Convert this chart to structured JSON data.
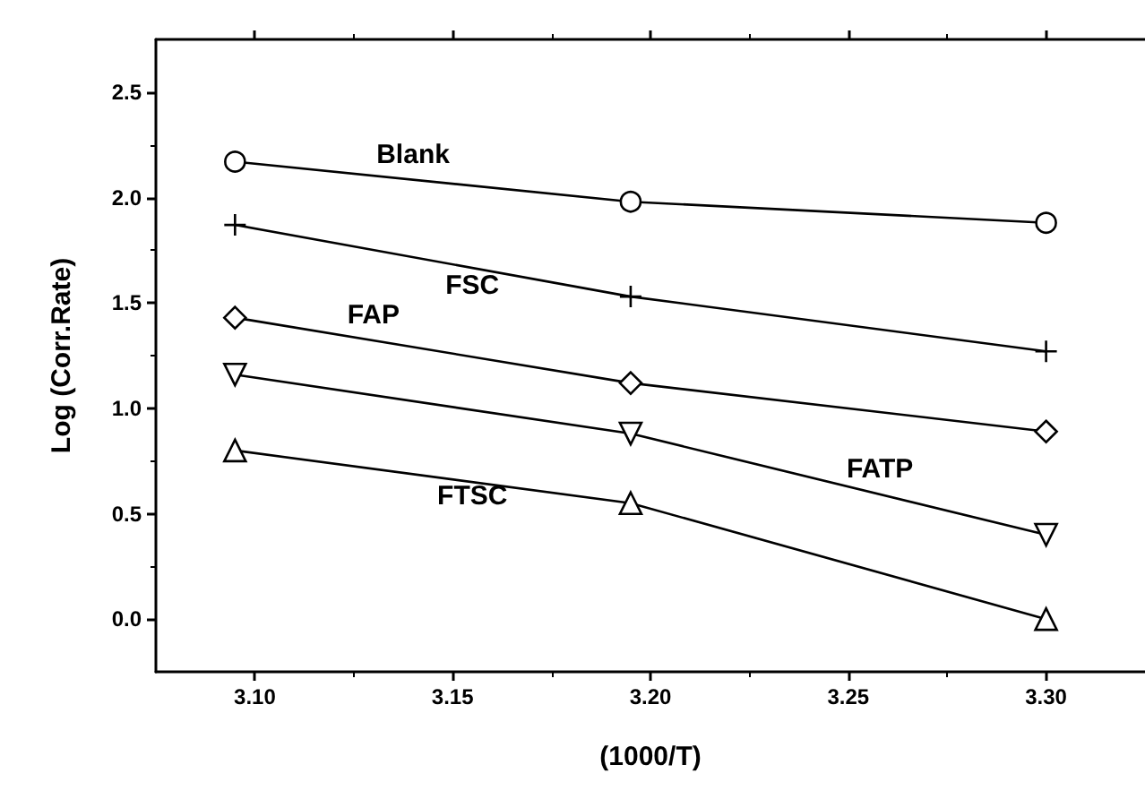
{
  "chart_data": {
    "type": "line",
    "xlabel": "(1000/T)",
    "ylabel": "Log (Corr.Rate)",
    "x": [
      3.095,
      3.195,
      3.3
    ],
    "xlim": [
      3.075,
      3.325
    ],
    "xticks": [
      {
        "value": 3.1,
        "label": "3.10"
      },
      3.15,
      {
        "value": 3.2,
        "label": "3.20"
      },
      3.25,
      {
        "value": 3.3,
        "label": "3.30"
      }
    ],
    "ylim": [
      -0.25,
      2.75
    ],
    "yticks": [
      {
        "value": 0,
        "label": "0.0"
      },
      0.5,
      {
        "value": 1,
        "label": "1.0"
      },
      1.5,
      {
        "value": 2,
        "label": "2.0"
      },
      2.5
    ],
    "grid": false,
    "legend": false,
    "series": [
      {
        "name": "Blank",
        "color": "#000000",
        "marker": "circle",
        "values": [
          2.17,
          1.98,
          1.88
        ]
      },
      {
        "name": "FSC",
        "color": "#000000",
        "marker": "cross",
        "values": [
          1.87,
          1.53,
          1.27
        ]
      },
      {
        "name": "FAP",
        "color": "#000000",
        "marker": "diamond",
        "values": [
          1.43,
          1.12,
          0.89
        ]
      },
      {
        "name": "FATP",
        "color": "#000000",
        "marker": "triangle-down",
        "values": [
          1.16,
          0.88,
          0.4
        ]
      },
      {
        "name": "FTSC",
        "color": "#000000",
        "marker": "triangle",
        "values": [
          0.8,
          0.55,
          0.0
        ]
      }
    ]
  }
}
